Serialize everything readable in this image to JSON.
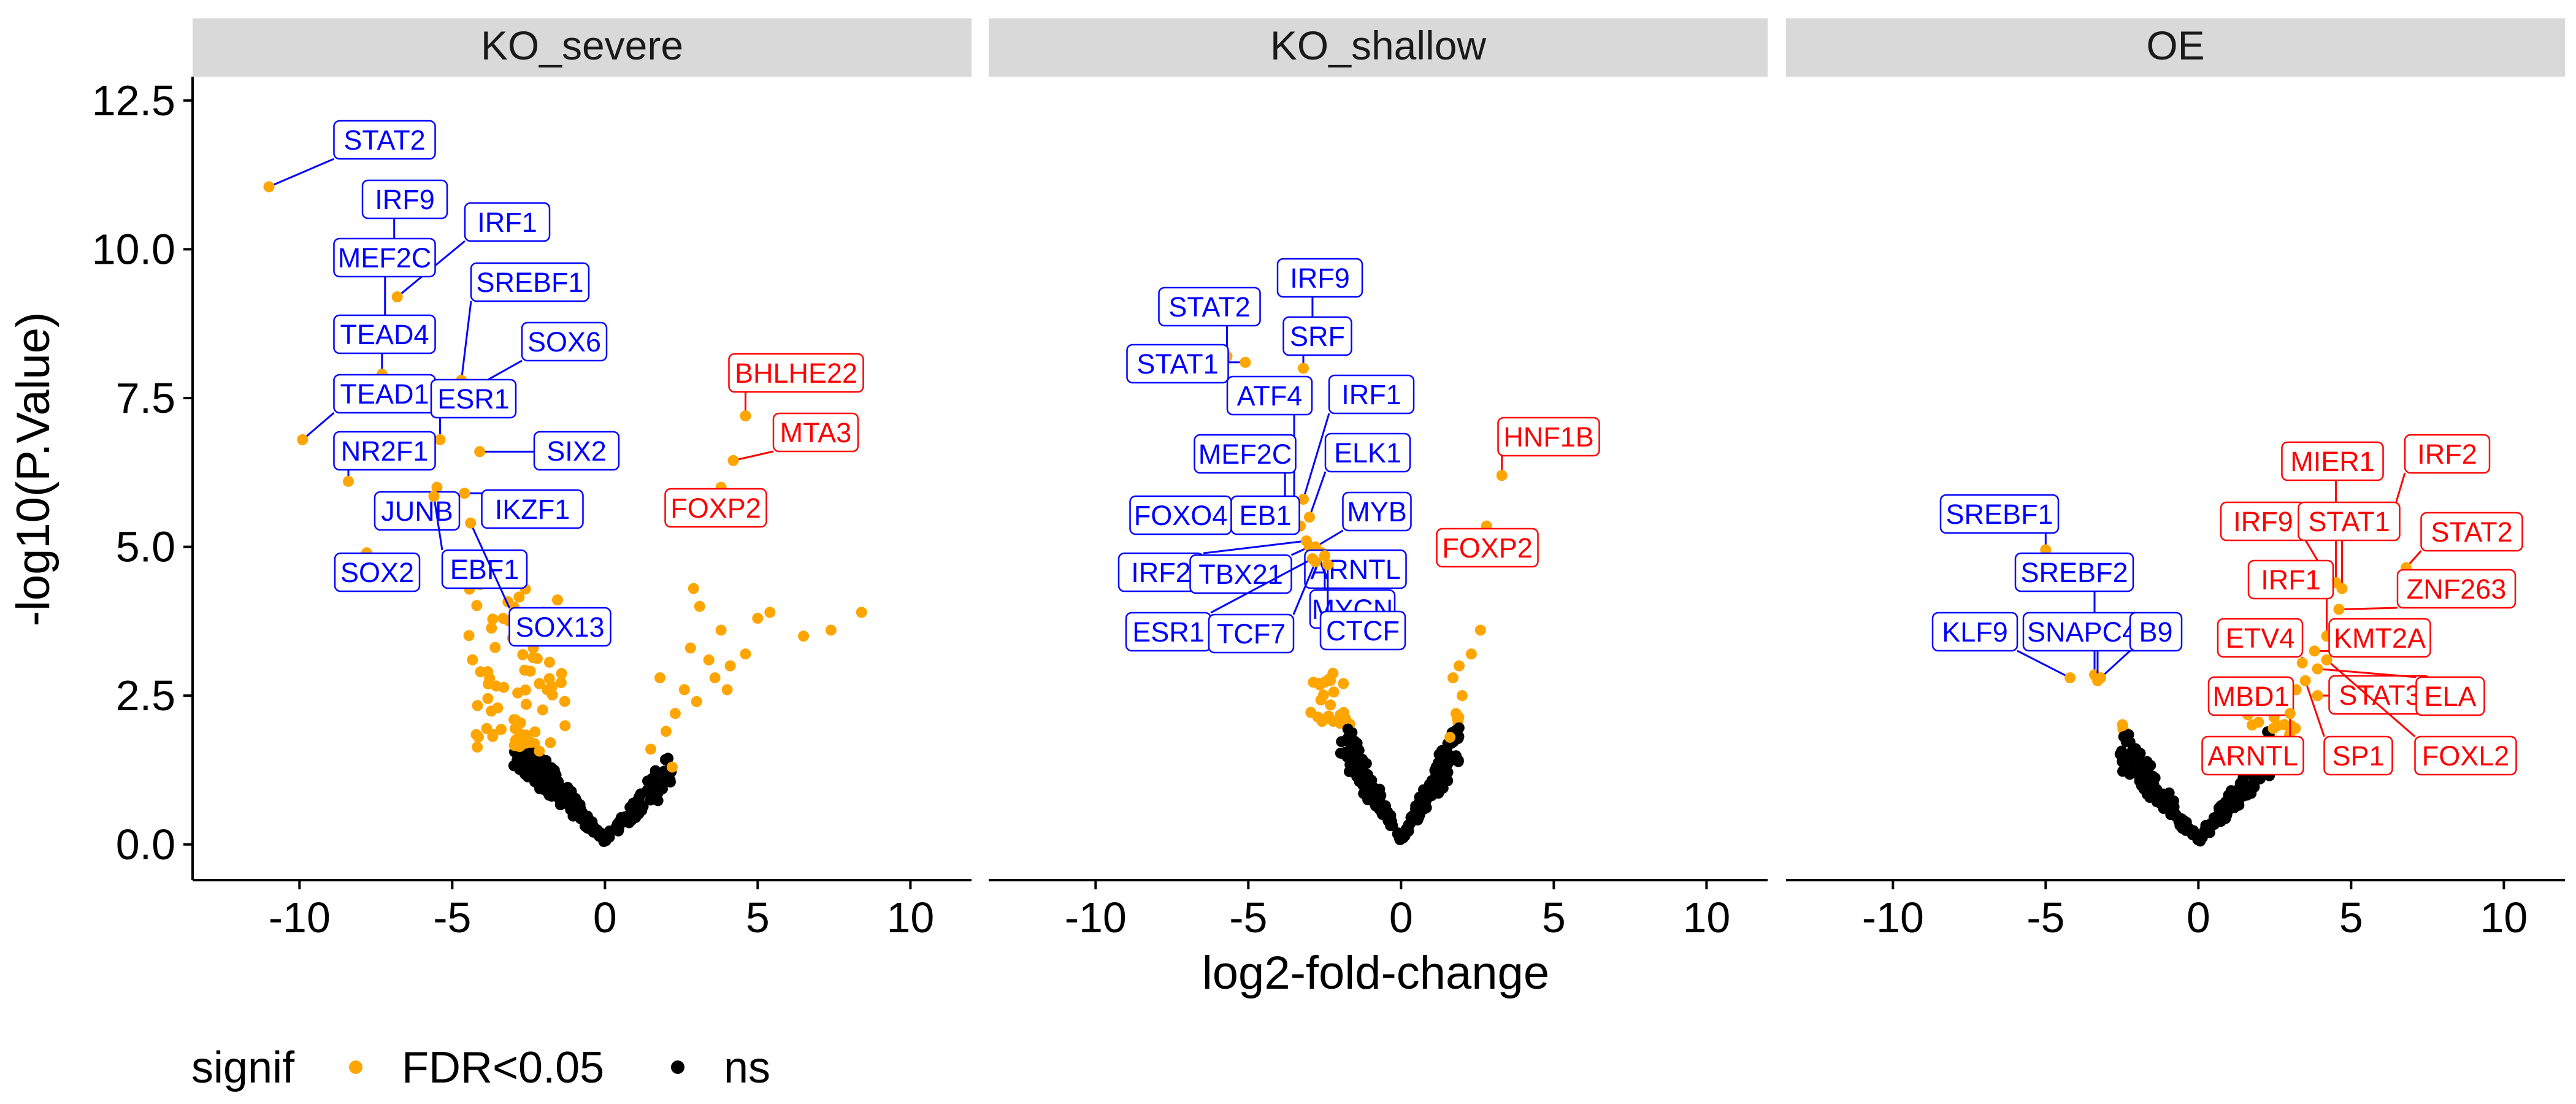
{
  "chart_data": {
    "type": "scatter",
    "facets": [
      "KO_severe",
      "KO_shallow",
      "OE"
    ],
    "xlabel": "log2-fold-change",
    "ylabel": "-log10(P.Value)",
    "x_ticks": [
      "-10",
      "-5",
      "0",
      "5",
      "10"
    ],
    "y_ticks": [
      "0.0",
      "2.5",
      "5.0",
      "7.5",
      "10.0",
      "12.5"
    ],
    "xlim": [
      -13.5,
      12
    ],
    "ylim": [
      -0.6,
      12.9
    ],
    "grid": false,
    "legend": {
      "position": "bottom-left",
      "title": "signif",
      "entries": [
        {
          "label": "FDR<0.05",
          "color": "#FFA500"
        },
        {
          "label": "ns",
          "color": "#000000"
        }
      ]
    },
    "colors": {
      "signif": "#FFA500",
      "ns": "#000000",
      "label_down": "#0000FF",
      "label_up": "#FF0000",
      "strip": "#D9D9D9"
    },
    "labels": [
      {
        "panel": 0,
        "gene": "STAT2",
        "x": -11.0,
        "y": 11.05,
        "dir": "down"
      },
      {
        "panel": 0,
        "gene": "IRF9",
        "x": -6.9,
        "y": 10.05,
        "dir": "down"
      },
      {
        "panel": 0,
        "gene": "IRF1",
        "x": -6.8,
        "y": 9.2,
        "dir": "down"
      },
      {
        "panel": 0,
        "gene": "MEF2C",
        "x": -7.2,
        "y": 8.6,
        "dir": "down"
      },
      {
        "panel": 0,
        "gene": "SREBF1",
        "x": -4.7,
        "y": 7.8,
        "dir": "down"
      },
      {
        "panel": 0,
        "gene": "TEAD4",
        "x": -7.3,
        "y": 7.9,
        "dir": "down"
      },
      {
        "panel": 0,
        "gene": "SOX6",
        "x": -4.9,
        "y": 7.5,
        "dir": "down"
      },
      {
        "panel": 0,
        "gene": "TEAD1",
        "x": -9.9,
        "y": 6.8,
        "dir": "down"
      },
      {
        "panel": 0,
        "gene": "ESR1",
        "x": -5.4,
        "y": 6.8,
        "dir": "down"
      },
      {
        "panel": 0,
        "gene": "SIX2",
        "x": -4.1,
        "y": 6.6,
        "dir": "down"
      },
      {
        "panel": 0,
        "gene": "NR2F1",
        "x": -8.4,
        "y": 6.1,
        "dir": "down"
      },
      {
        "panel": 0,
        "gene": "IKZF1",
        "x": -4.6,
        "y": 5.9,
        "dir": "down"
      },
      {
        "panel": 0,
        "gene": "JUNB",
        "x": -5.5,
        "y": 6.0,
        "dir": "down"
      },
      {
        "panel": 0,
        "gene": "EBF1",
        "x": -5.6,
        "y": 5.85,
        "dir": "down"
      },
      {
        "panel": 0,
        "gene": "SOX2",
        "x": -7.8,
        "y": 4.9,
        "dir": "down"
      },
      {
        "panel": 0,
        "gene": "SOX13",
        "x": -4.4,
        "y": 5.4,
        "dir": "down"
      },
      {
        "panel": 0,
        "gene": "BHLHE22",
        "x": 4.6,
        "y": 7.2,
        "dir": "up"
      },
      {
        "panel": 0,
        "gene": "MTA3",
        "x": 4.2,
        "y": 6.45,
        "dir": "up"
      },
      {
        "panel": 0,
        "gene": "FOXP2",
        "x": 3.8,
        "y": 6.0,
        "dir": "up"
      },
      {
        "panel": 1,
        "gene": "IRF9",
        "x": -2.9,
        "y": 8.4,
        "dir": "down"
      },
      {
        "panel": 1,
        "gene": "STAT2",
        "x": -5.7,
        "y": 8.2,
        "dir": "down"
      },
      {
        "panel": 1,
        "gene": "SRF",
        "x": -3.2,
        "y": 8.0,
        "dir": "down"
      },
      {
        "panel": 1,
        "gene": "STAT1",
        "x": -5.1,
        "y": 8.1,
        "dir": "down"
      },
      {
        "panel": 1,
        "gene": "ATF4",
        "x": -3.5,
        "y": 5.75,
        "dir": "down"
      },
      {
        "panel": 1,
        "gene": "IRF1",
        "x": -3.2,
        "y": 5.8,
        "dir": "down"
      },
      {
        "panel": 1,
        "gene": "MEF2C",
        "x": -3.8,
        "y": 5.7,
        "dir": "down"
      },
      {
        "panel": 1,
        "gene": "ELK1",
        "x": -3.0,
        "y": 5.5,
        "dir": "down"
      },
      {
        "panel": 1,
        "gene": "FOXO4",
        "x": -3.6,
        "y": 5.5,
        "dir": "down"
      },
      {
        "panel": 1,
        "gene": "EB1",
        "x": -3.3,
        "y": 5.35,
        "dir": "down"
      },
      {
        "panel": 1,
        "gene": "MYB",
        "x": -2.8,
        "y": 5.0,
        "dir": "down"
      },
      {
        "panel": 1,
        "gene": "IRF2",
        "x": -3.1,
        "y": 5.1,
        "dir": "down"
      },
      {
        "panel": 1,
        "gene": "TBX21",
        "x": -3.0,
        "y": 5.0,
        "dir": "down"
      },
      {
        "panel": 1,
        "gene": "ARNTL",
        "x": -2.6,
        "y": 4.9,
        "dir": "down"
      },
      {
        "panel": 1,
        "gene": "MYCN",
        "x": -2.5,
        "y": 4.85,
        "dir": "down"
      },
      {
        "panel": 1,
        "gene": "ESR1",
        "x": -2.9,
        "y": 4.8,
        "dir": "down"
      },
      {
        "panel": 1,
        "gene": "TCF7",
        "x": -2.8,
        "y": 4.75,
        "dir": "down"
      },
      {
        "panel": 1,
        "gene": "CTCF",
        "x": -2.4,
        "y": 4.7,
        "dir": "down"
      },
      {
        "panel": 1,
        "gene": "HNF1B",
        "x": 3.3,
        "y": 6.2,
        "dir": "up"
      },
      {
        "panel": 1,
        "gene": "FOXP2",
        "x": 2.8,
        "y": 5.35,
        "dir": "up"
      },
      {
        "panel": 2,
        "gene": "SREBF1",
        "x": -5.0,
        "y": 4.95,
        "dir": "down"
      },
      {
        "panel": 2,
        "gene": "SREBF2",
        "x": -3.4,
        "y": 2.85,
        "dir": "down"
      },
      {
        "panel": 2,
        "gene": "KLF9",
        "x": -4.2,
        "y": 2.8,
        "dir": "down"
      },
      {
        "panel": 2,
        "gene": "SNAPC4",
        "x": -3.3,
        "y": 2.75,
        "dir": "down"
      },
      {
        "panel": 2,
        "gene": "B9",
        "x": -3.2,
        "y": 2.8,
        "dir": "down"
      },
      {
        "panel": 2,
        "gene": "MIER1",
        "x": 4.5,
        "y": 4.4,
        "dir": "up"
      },
      {
        "panel": 2,
        "gene": "IRF2",
        "x": 6.3,
        "y": 5.45,
        "dir": "up"
      },
      {
        "panel": 2,
        "gene": "IRF9",
        "x": 4.1,
        "y": 4.6,
        "dir": "up"
      },
      {
        "panel": 2,
        "gene": "STAT1",
        "x": 4.7,
        "y": 4.3,
        "dir": "up"
      },
      {
        "panel": 2,
        "gene": "STAT2",
        "x": 6.8,
        "y": 4.65,
        "dir": "up"
      },
      {
        "panel": 2,
        "gene": "IRF1",
        "x": 4.2,
        "y": 3.5,
        "dir": "up"
      },
      {
        "panel": 2,
        "gene": "ZNF263",
        "x": 4.6,
        "y": 3.95,
        "dir": "up"
      },
      {
        "panel": 2,
        "gene": "ETV4",
        "x": 3.4,
        "y": 3.05,
        "dir": "up"
      },
      {
        "panel": 2,
        "gene": "KMT2A",
        "x": 3.8,
        "y": 3.25,
        "dir": "up"
      },
      {
        "panel": 2,
        "gene": "MBD1",
        "x": 3.2,
        "y": 2.6,
        "dir": "up"
      },
      {
        "panel": 2,
        "gene": "STAT3",
        "x": 3.9,
        "y": 2.5,
        "dir": "up"
      },
      {
        "panel": 2,
        "gene": "ELA",
        "x": 3.9,
        "y": 2.95,
        "dir": "up"
      },
      {
        "panel": 2,
        "gene": "ARNTL",
        "x": 3.0,
        "y": 2.2,
        "dir": "up"
      },
      {
        "panel": 2,
        "gene": "SP1",
        "x": 3.5,
        "y": 2.75,
        "dir": "up"
      },
      {
        "panel": 2,
        "gene": "FOXL2",
        "x": 4.2,
        "y": 3.1,
        "dir": "up"
      }
    ]
  }
}
